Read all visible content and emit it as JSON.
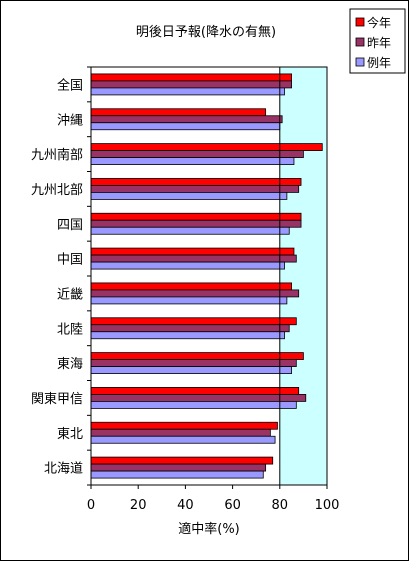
{
  "chart_data": {
    "type": "bar",
    "orientation": "horizontal",
    "title": "明後日予報(降水の有無)",
    "xlabel": "適中率(%)",
    "ylabel": "",
    "xlim": [
      0,
      100
    ],
    "xticks": [
      0,
      20,
      40,
      60,
      80,
      100
    ],
    "highlight_range": [
      80,
      100
    ],
    "grid": false,
    "legend_position": "top-right",
    "categories": [
      "全国",
      "沖縄",
      "九州南部",
      "九州北部",
      "四国",
      "中国",
      "近畿",
      "北陸",
      "東海",
      "関東甲信",
      "東北",
      "北海道"
    ],
    "series": [
      {
        "name": "今年",
        "color": "#ff0000",
        "values": [
          85,
          74,
          98,
          89,
          89,
          86,
          85,
          87,
          90,
          88,
          79,
          77
        ]
      },
      {
        "name": "昨年",
        "color": "#993366",
        "values": [
          85,
          81,
          90,
          88,
          89,
          87,
          88,
          84,
          87,
          91,
          76,
          74
        ]
      },
      {
        "name": "例年",
        "color": "#9999ff",
        "values": [
          82,
          80,
          86,
          83,
          84,
          82,
          83,
          82,
          85,
          87,
          78,
          73
        ]
      }
    ],
    "highlight_color": "#ccffff"
  }
}
